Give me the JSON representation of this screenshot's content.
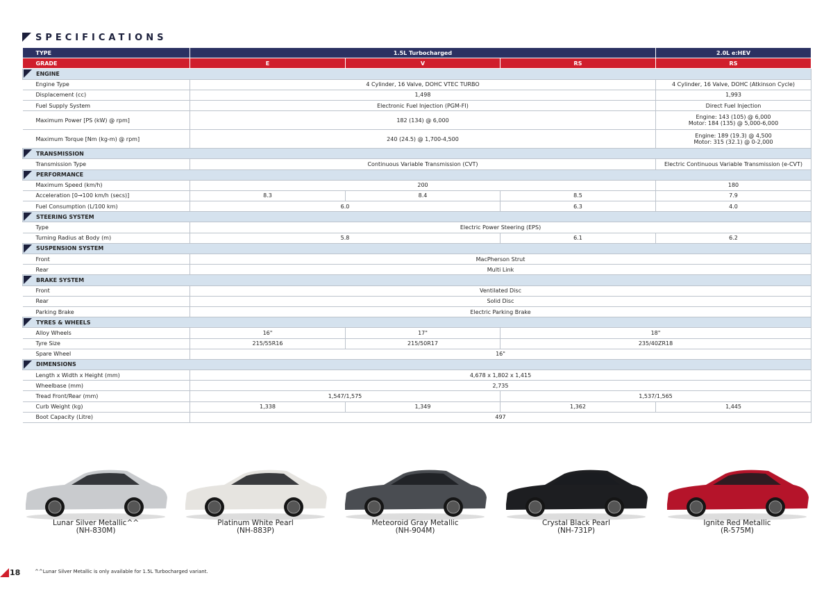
{
  "header": {
    "title": "SPECIFICATIONS"
  },
  "table": {
    "head": {
      "type": {
        "label": "TYPE",
        "values": [
          "1.5L Turbocharged",
          "2.0L e:HEV"
        ]
      },
      "grade": {
        "label": "GRADE",
        "values": [
          "E",
          "V",
          "RS",
          "RS"
        ]
      }
    },
    "sections": [
      {
        "name": "ENGINE",
        "rows": [
          {
            "label": "Engine Type",
            "cells": [
              "4 Cylinder, 16 Valve, DOHC VTEC TURBO",
              "4 Cylinder, 16 Valve, DOHC (Atkinson Cycle)"
            ]
          },
          {
            "label": "Displacement (cc)",
            "cells": [
              "1,498",
              "1,993"
            ]
          },
          {
            "label": "Fuel Supply System",
            "cells": [
              "Electronic Fuel Injection (PGM-FI)",
              "Direct Fuel Injection"
            ]
          },
          {
            "label": "Maximum Power [PS (kW) @ rpm]",
            "cells": [
              "182 (134) @ 6,000",
              [
                "Engine: 143 (105) @ 6,000",
                "Motor: 184 (135) @ 5,000-6,000"
              ]
            ]
          },
          {
            "label": "Maximum Torque [Nm (kg-m) @ rpm]",
            "cells": [
              "240 (24.5) @ 1,700-4,500",
              [
                "Engine: 189 (19.3) @ 4,500",
                "Motor: 315 (32.1) @ 0-2,000"
              ]
            ]
          }
        ]
      },
      {
        "name": "TRANSMISSION",
        "rows": [
          {
            "label": "Transmission Type",
            "cells": [
              "Continuous Variable Transmission (CVT)",
              "Electric Continuous Variable Transmission (e-CVT)"
            ]
          }
        ]
      },
      {
        "name": "PERFORMANCE",
        "rows": [
          {
            "label": "Maximum Speed (km/h)",
            "cells": [
              "200",
              "180"
            ]
          },
          {
            "label": "Acceleration [0→100 km/h (secs)]",
            "cells": [
              "8.3",
              "8.4",
              "8.5",
              "7.9"
            ]
          },
          {
            "label": "Fuel Consumption (L/100 km)",
            "cells": [
              "6.0",
              "6.3",
              "4.0"
            ]
          }
        ]
      },
      {
        "name": "STEERING SYSTEM",
        "rows": [
          {
            "label": "Type",
            "cells": [
              "Electric Power Steering (EPS)"
            ]
          },
          {
            "label": "Turning Radius at Body (m)",
            "cells": [
              "5.8",
              "6.1",
              "6.2"
            ]
          }
        ]
      },
      {
        "name": "SUSPENSION SYSTEM",
        "rows": [
          {
            "label": "Front",
            "cells": [
              "MacPherson Strut"
            ]
          },
          {
            "label": "Rear",
            "cells": [
              "Multi Link"
            ]
          }
        ]
      },
      {
        "name": "BRAKE SYSTEM",
        "rows": [
          {
            "label": "Front",
            "cells": [
              "Ventilated Disc"
            ]
          },
          {
            "label": "Rear",
            "cells": [
              "Solid Disc"
            ]
          },
          {
            "label": "Parking Brake",
            "cells": [
              "Electric Parking Brake"
            ]
          }
        ]
      },
      {
        "name": "TYRES & WHEELS",
        "rows": [
          {
            "label": "Alloy Wheels",
            "cells": [
              "16\"",
              "17\"",
              "18\""
            ]
          },
          {
            "label": "Tyre Size",
            "cells": [
              "215/55R16",
              "215/50R17",
              "235/40ZR18"
            ]
          },
          {
            "label": "Spare Wheel",
            "cells": [
              "16\""
            ]
          }
        ]
      },
      {
        "name": "DIMENSIONS",
        "rows": [
          {
            "label": "Length x Width x Height (mm)",
            "cells": [
              "4,678 x 1,802 x 1,415"
            ]
          },
          {
            "label": "Wheelbase (mm)",
            "cells": [
              "2,735"
            ]
          },
          {
            "label": "Tread Front/Rear (mm)",
            "cells": [
              "1,547/1,575",
              "1,537/1,565"
            ]
          },
          {
            "label": "Curb Weight (kg)",
            "cells": [
              "1,338",
              "1,349",
              "1,362",
              "1,445"
            ]
          },
          {
            "label": "Boot Capacity (Litre)",
            "cells": [
              "497"
            ]
          }
        ]
      }
    ]
  },
  "colors": [
    {
      "name": "Lunar Silver Metallic^^",
      "code": "(NH-830M)"
    },
    {
      "name": "Platinum White Pearl",
      "code": "(NH-883P)"
    },
    {
      "name": "Meteoroid Gray Metallic",
      "code": "(NH-904M)"
    },
    {
      "name": "Crystal Black Pearl",
      "code": "(NH-731P)"
    },
    {
      "name": "Ignite Red Metallic",
      "code": "(R-575M)"
    }
  ],
  "footer": {
    "page": "18",
    "note": "^^Lunar Silver Metallic is only available for 1.5L Turbocharged variant."
  }
}
